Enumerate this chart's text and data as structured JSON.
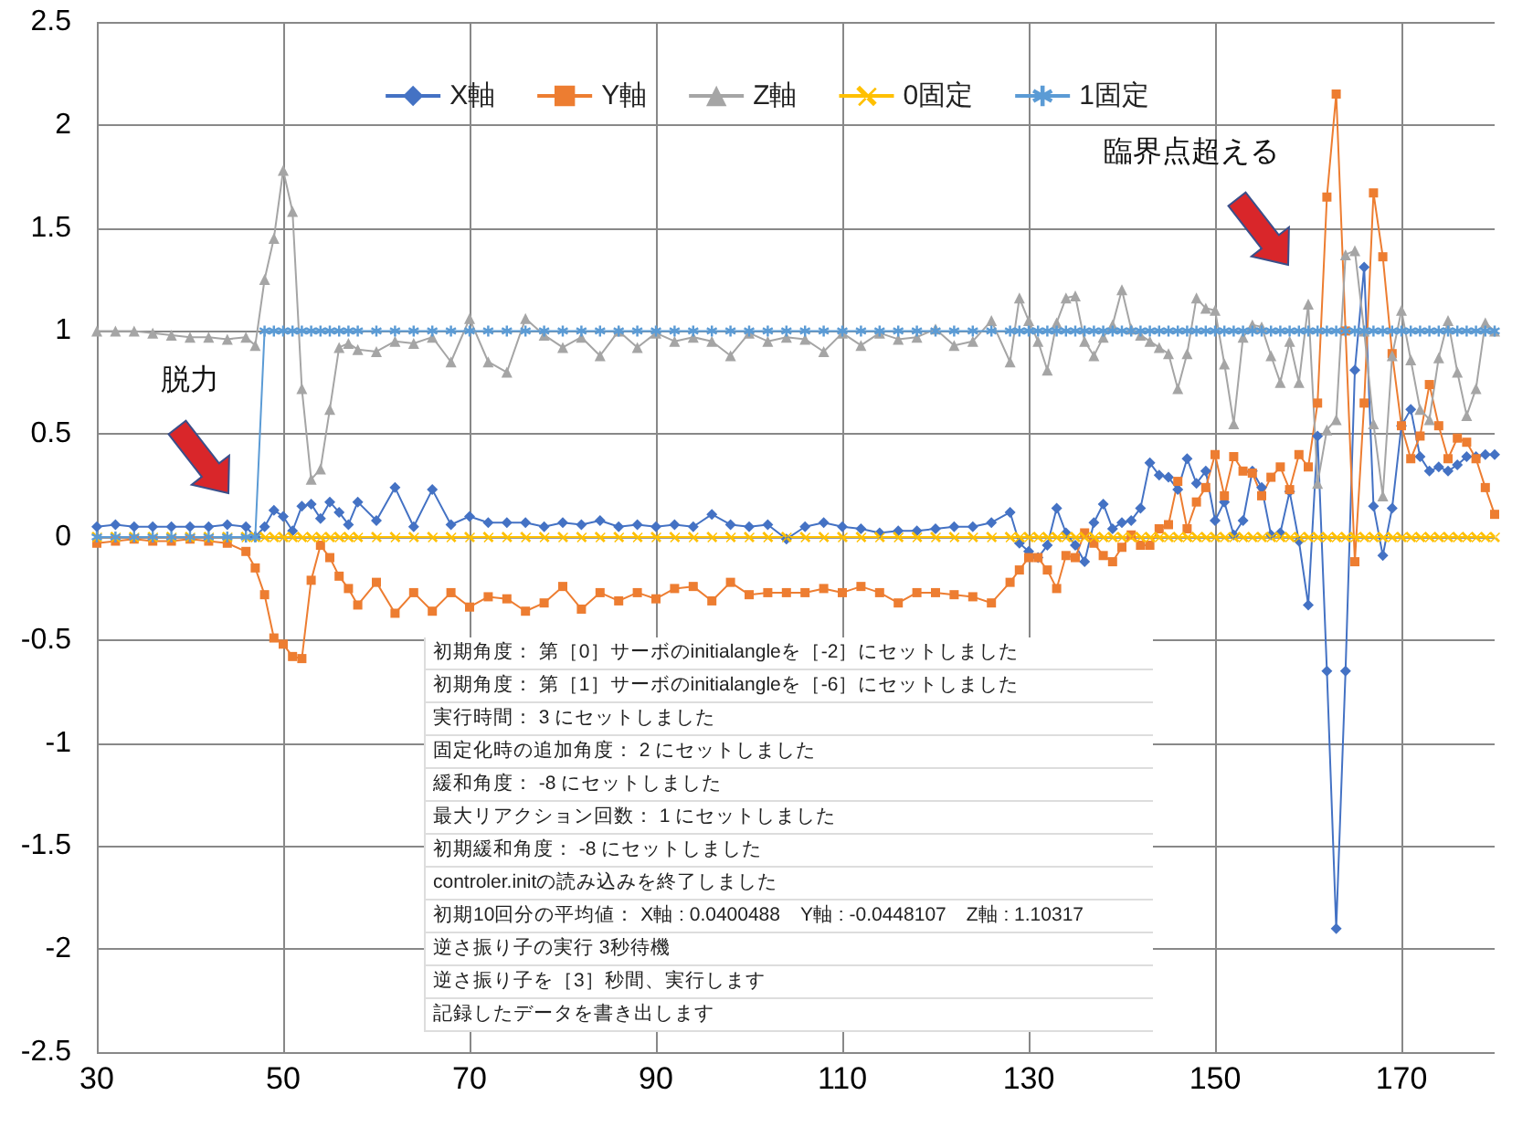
{
  "chart_data": {
    "type": "line",
    "x": [
      30,
      32,
      34,
      36,
      38,
      40,
      42,
      44,
      46,
      47,
      48,
      49,
      50,
      51,
      52,
      53,
      54,
      55,
      56,
      57,
      58,
      60,
      62,
      64,
      66,
      68,
      70,
      72,
      74,
      76,
      78,
      80,
      82,
      84,
      86,
      88,
      90,
      92,
      94,
      96,
      98,
      100,
      102,
      104,
      106,
      108,
      110,
      112,
      114,
      116,
      118,
      120,
      122,
      124,
      126,
      128,
      129,
      130,
      131,
      132,
      133,
      134,
      135,
      136,
      137,
      138,
      139,
      140,
      141,
      142,
      143,
      144,
      145,
      146,
      147,
      148,
      149,
      150,
      151,
      152,
      153,
      154,
      155,
      156,
      157,
      158,
      159,
      160,
      161,
      162,
      163,
      164,
      165,
      166,
      167,
      168,
      169,
      170,
      171,
      172,
      173,
      174,
      175,
      176,
      177,
      178,
      179,
      180
    ],
    "series": [
      {
        "name": "X軸",
        "color": "#4472c4",
        "marker": "diamond",
        "values": [
          0.05,
          0.06,
          0.05,
          0.05,
          0.05,
          0.05,
          0.05,
          0.06,
          0.05,
          0.0,
          0.05,
          0.13,
          0.1,
          0.03,
          0.15,
          0.16,
          0.09,
          0.17,
          0.12,
          0.06,
          0.17,
          0.08,
          0.24,
          0.05,
          0.23,
          0.06,
          0.1,
          0.07,
          0.07,
          0.07,
          0.05,
          0.07,
          0.06,
          0.08,
          0.05,
          0.06,
          0.05,
          0.06,
          0.05,
          0.11,
          0.06,
          0.05,
          0.06,
          -0.01,
          0.05,
          0.07,
          0.05,
          0.04,
          0.02,
          0.03,
          0.03,
          0.04,
          0.05,
          0.05,
          0.07,
          0.12,
          -0.03,
          -0.07,
          -0.1,
          -0.04,
          0.14,
          0.02,
          -0.04,
          -0.12,
          0.07,
          0.16,
          0.04,
          0.07,
          0.08,
          0.14,
          0.36,
          0.3,
          0.29,
          0.23,
          0.38,
          0.26,
          0.32,
          0.08,
          0.17,
          0.01,
          0.08,
          0.32,
          0.24,
          0.01,
          0.02,
          0.22,
          -0.02,
          -0.33,
          0.49,
          -0.65,
          -1.9,
          -0.65,
          0.81,
          1.31,
          0.15,
          -0.09,
          0.14,
          0.54,
          0.62,
          0.39,
          0.32,
          0.34,
          0.32,
          0.35,
          0.39,
          0.39,
          0.4,
          0.4
        ]
      },
      {
        "name": "Y軸",
        "color": "#ed7d31",
        "marker": "square",
        "values": [
          -0.03,
          -0.02,
          -0.01,
          -0.02,
          -0.02,
          -0.01,
          -0.02,
          -0.03,
          -0.07,
          -0.15,
          -0.28,
          -0.49,
          -0.52,
          -0.58,
          -0.59,
          -0.21,
          -0.04,
          -0.1,
          -0.19,
          -0.25,
          -0.33,
          -0.22,
          -0.37,
          -0.27,
          -0.36,
          -0.27,
          -0.34,
          -0.29,
          -0.3,
          -0.36,
          -0.32,
          -0.24,
          -0.35,
          -0.27,
          -0.31,
          -0.27,
          -0.3,
          -0.25,
          -0.24,
          -0.31,
          -0.22,
          -0.28,
          -0.27,
          -0.27,
          -0.27,
          -0.25,
          -0.27,
          -0.24,
          -0.27,
          -0.32,
          -0.27,
          -0.27,
          -0.28,
          -0.29,
          -0.32,
          -0.22,
          -0.16,
          -0.1,
          -0.1,
          -0.16,
          -0.25,
          -0.09,
          -0.1,
          0.02,
          -0.03,
          -0.09,
          -0.12,
          -0.05,
          0.01,
          -0.04,
          -0.04,
          0.04,
          0.06,
          0.27,
          0.04,
          0.17,
          0.24,
          0.4,
          0.2,
          0.39,
          0.32,
          0.31,
          0.2,
          0.29,
          0.34,
          0.23,
          0.4,
          0.34,
          0.65,
          1.65,
          2.15,
          1.0,
          -0.12,
          0.65,
          1.67,
          1.36,
          0.89,
          0.54,
          0.38,
          0.49,
          0.74,
          0.54,
          0.38,
          0.48,
          0.46,
          0.38,
          0.24,
          0.11
        ]
      },
      {
        "name": "Z軸",
        "color": "#a5a5a5",
        "marker": "triangle",
        "values": [
          1.0,
          1.0,
          1.0,
          0.99,
          0.98,
          0.97,
          0.97,
          0.96,
          0.97,
          0.93,
          1.25,
          1.45,
          1.78,
          1.58,
          0.72,
          0.28,
          0.33,
          0.62,
          0.92,
          0.94,
          0.91,
          0.9,
          0.95,
          0.94,
          0.97,
          0.85,
          1.06,
          0.85,
          0.8,
          1.06,
          0.98,
          0.92,
          0.97,
          0.88,
          1.0,
          0.92,
          0.99,
          0.95,
          0.97,
          0.95,
          0.88,
          0.99,
          0.95,
          0.97,
          0.96,
          0.9,
          0.99,
          0.93,
          0.99,
          0.96,
          0.97,
          1.01,
          0.93,
          0.95,
          1.05,
          0.85,
          1.16,
          1.05,
          0.95,
          0.81,
          1.04,
          1.16,
          1.17,
          0.95,
          0.88,
          0.97,
          1.03,
          1.2,
          1.01,
          0.98,
          0.95,
          0.92,
          0.89,
          0.72,
          0.89,
          1.16,
          1.11,
          1.1,
          0.84,
          0.55,
          0.97,
          1.03,
          1.02,
          0.88,
          0.75,
          0.95,
          0.75,
          1.13,
          0.26,
          0.52,
          0.57,
          1.37,
          1.39,
          1.0,
          0.55,
          0.2,
          0.88,
          1.1,
          0.86,
          0.62,
          0.57,
          0.87,
          1.05,
          0.8,
          0.59,
          0.72,
          1.04,
          1.0
        ]
      },
      {
        "name": "0固定",
        "color": "#ffc000",
        "marker": "cross",
        "values": [
          0,
          0,
          0,
          0,
          0,
          0,
          0,
          0,
          0,
          0,
          0,
          0,
          0,
          0,
          0,
          0,
          0,
          0,
          0,
          0,
          0,
          0,
          0,
          0,
          0,
          0,
          0,
          0,
          0,
          0,
          0,
          0,
          0,
          0,
          0,
          0,
          0,
          0,
          0,
          0,
          0,
          0,
          0,
          0,
          0,
          0,
          0,
          0,
          0,
          0,
          0,
          0,
          0,
          0,
          0,
          0,
          0,
          0,
          0,
          0,
          0,
          0,
          0,
          0,
          0,
          0,
          0,
          0,
          0,
          0,
          0,
          0,
          0,
          0,
          0,
          0,
          0,
          0,
          0,
          0,
          0,
          0,
          0,
          0,
          0,
          0,
          0,
          0,
          0,
          0,
          0,
          0,
          0,
          0,
          0,
          0,
          0,
          0,
          0,
          0,
          0,
          0,
          0,
          0,
          0,
          0,
          0,
          0
        ]
      },
      {
        "name": "1固定",
        "color": "#5b9bd5",
        "marker": "star",
        "values": [
          0,
          0,
          0,
          0,
          0,
          0,
          0,
          0,
          0,
          0,
          1,
          1,
          1,
          1,
          1,
          1,
          1,
          1,
          1,
          1,
          1,
          1,
          1,
          1,
          1,
          1,
          1,
          1,
          1,
          1,
          1,
          1,
          1,
          1,
          1,
          1,
          1,
          1,
          1,
          1,
          1,
          1,
          1,
          1,
          1,
          1,
          1,
          1,
          1,
          1,
          1,
          1,
          1,
          1,
          1,
          1,
          1,
          1,
          1,
          1,
          1,
          1,
          1,
          1,
          1,
          1,
          1,
          1,
          1,
          1,
          1,
          1,
          1,
          1,
          1,
          1,
          1,
          1,
          1,
          1,
          1,
          1,
          1,
          1,
          1,
          1,
          1,
          1,
          1,
          1,
          1,
          1,
          1,
          1,
          1,
          1,
          1,
          1,
          1,
          1,
          1,
          1,
          1,
          1,
          1,
          1,
          1,
          1
        ]
      }
    ],
    "xlim": [
      30,
      180
    ],
    "xticks": [
      30,
      50,
      70,
      90,
      110,
      130,
      150,
      170
    ],
    "ylim": [
      -2.5,
      2.5
    ],
    "yticks": [
      -2.5,
      -2,
      -1.5,
      -1,
      -0.5,
      0,
      0.5,
      1,
      1.5,
      2,
      2.5
    ],
    "grid": true,
    "legend": "top",
    "annotations": [
      "脱力",
      "臨界点超える",
      "初期角度： 第［0］サーボのinitialangleを［-2］にセットしました",
      "初期角度： 第［1］サーボのinitialangleを［-6］にセットしました",
      "実行時間： 3 にセットしました",
      "固定化時の追加角度： 2 にセットしました",
      "緩和角度： -8 にセットしました",
      "最大リアクション回数： 1 にセットしました",
      "初期緩和角度： -8 にセットしました",
      "controler.initの読み込みを終了しました",
      "初期10回分の平均値： X軸 : 0.0400488　Y軸 : -0.0448107　Z軸 : 1.10317",
      "逆さ振り子の実行 3秒待機",
      "逆さ振り子を［3］秒間、実行します",
      "記録したデータを書き出します"
    ]
  }
}
